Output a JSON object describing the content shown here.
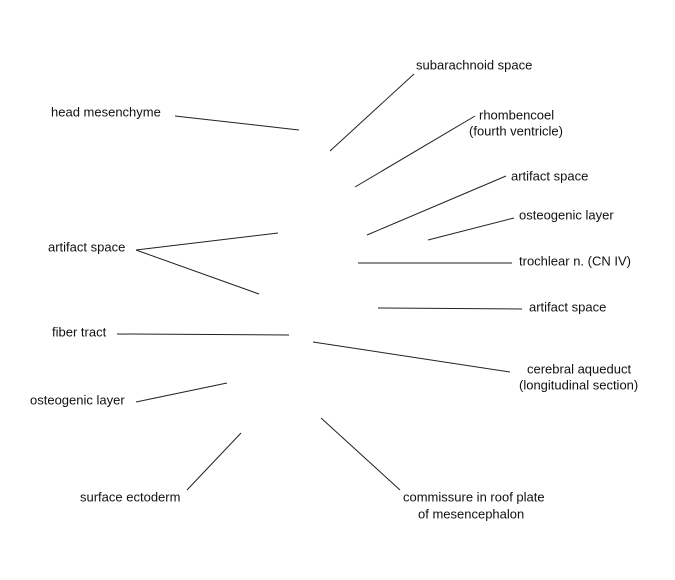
{
  "labels": {
    "head_mesenchyme": "head mesenchyme",
    "subarachnoid_space": "subarachnoid space",
    "rhombencoel_1": "rhombencoel",
    "rhombencoel_2": "(fourth ventricle)",
    "artifact_space_upper_right": "artifact space",
    "osteogenic_layer_right": "osteogenic layer",
    "trochlear_nerve": "trochlear n. (CN IV)",
    "artifact_space_lower_right": "artifact space",
    "artifact_space_left": "artifact space",
    "fiber_tract": "fiber tract",
    "cerebral_aqueduct_1": "cerebral aqueduct",
    "cerebral_aqueduct_2": "(longitudinal section)",
    "osteogenic_layer_left": "osteogenic layer",
    "surface_ectoderm": "surface ectoderm",
    "commissure_1": "commissure in roof plate",
    "commissure_2": "of mesencephalon"
  }
}
